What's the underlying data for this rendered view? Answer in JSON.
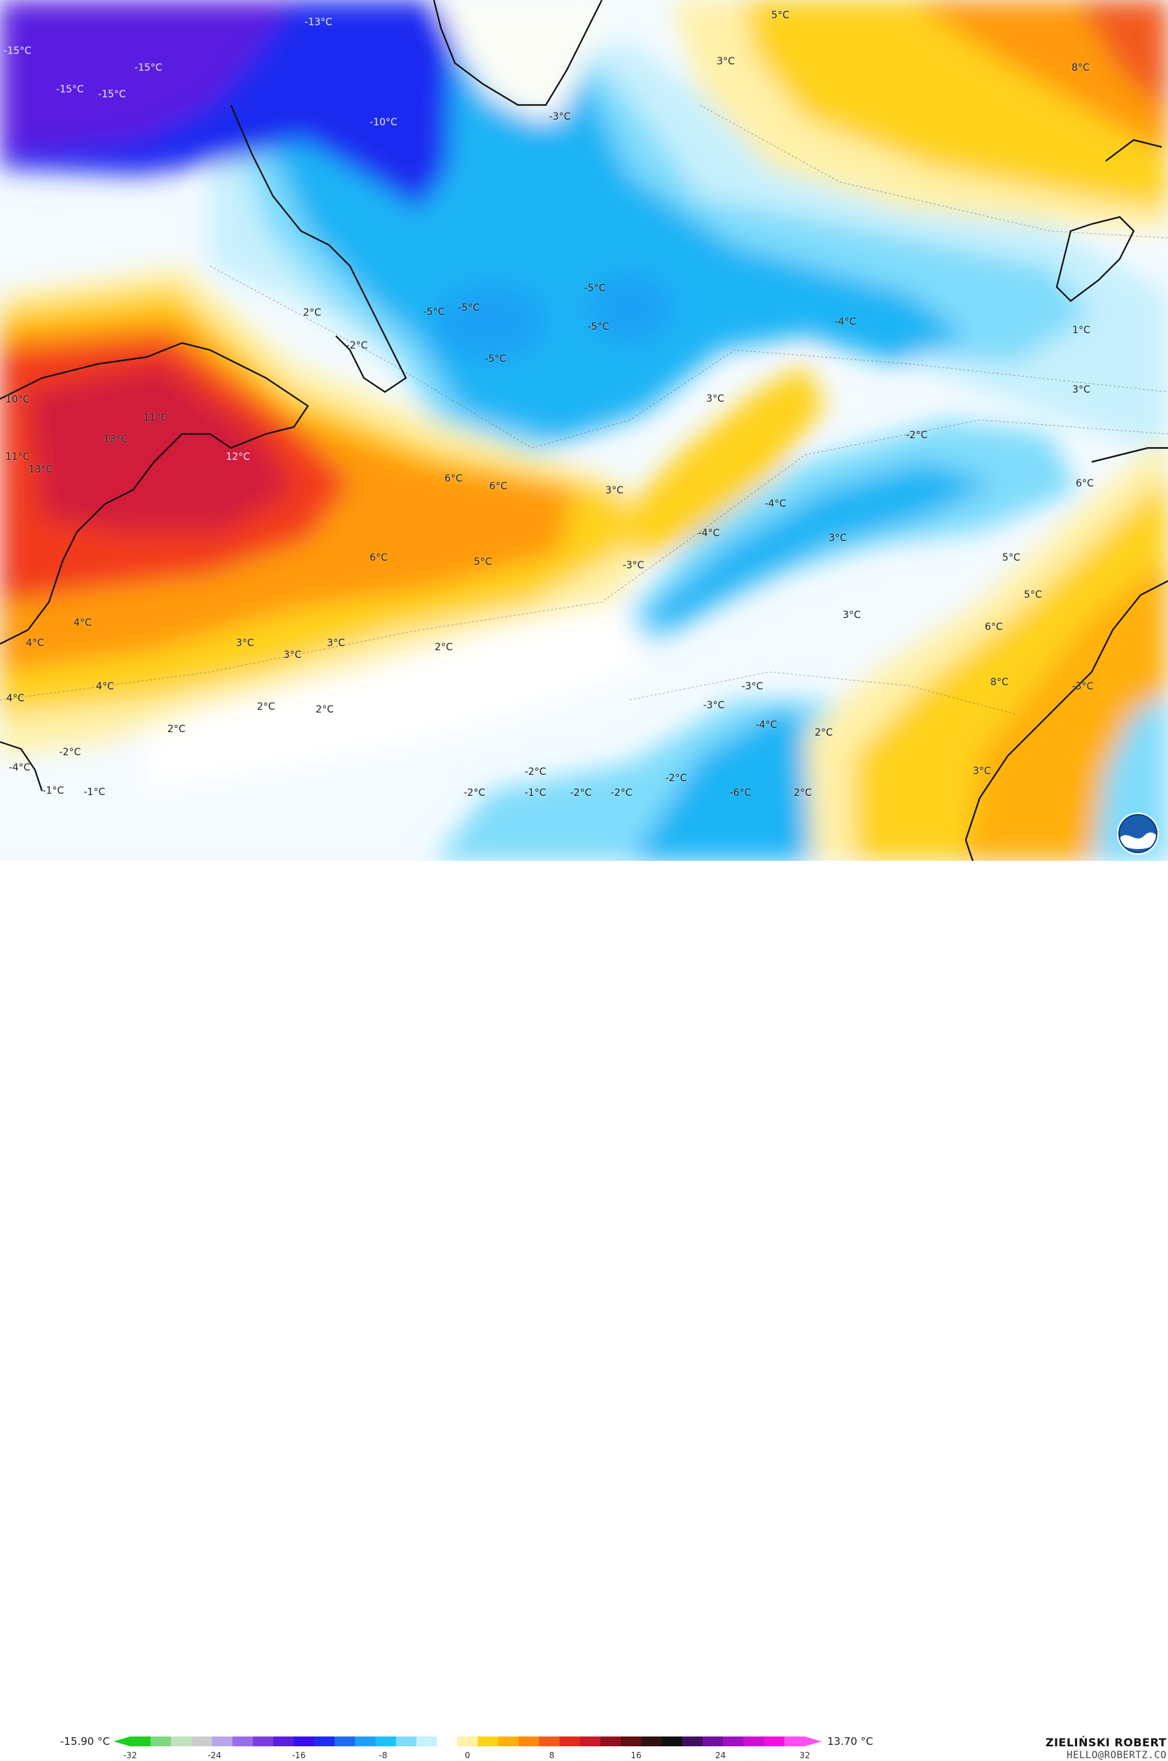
{
  "map": {
    "colors": {
      "very_cold": "#5a1ee0",
      "deep_cold": "#1f2cf0",
      "cold": "#1fb4f5",
      "cool": "#7fdcfb",
      "light": "#c7f0fd",
      "neutral": "#ffffff",
      "warm_light": "#fff1a8",
      "warm": "#ffd21a",
      "orange": "#ff9a10",
      "hot": "#f23a1a",
      "very_hot": "#d11d3a"
    },
    "labels": [
      {
        "text": "-13°C",
        "tone": "light"
      },
      {
        "text": "-15°C",
        "tone": "light"
      },
      {
        "text": "-15°C",
        "tone": "light"
      },
      {
        "text": "-15°C",
        "tone": "light"
      },
      {
        "text": "-15°C",
        "tone": "light"
      },
      {
        "text": "-10°C",
        "tone": "light"
      },
      {
        "text": "-3°C",
        "tone": "dark"
      },
      {
        "text": "5°C",
        "tone": "dark"
      },
      {
        "text": "3°C",
        "tone": "dark"
      },
      {
        "text": "8°C",
        "tone": "dark"
      },
      {
        "text": "-5°C",
        "tone": "dark"
      },
      {
        "text": "-5°C",
        "tone": "dark"
      },
      {
        "text": "-5°C",
        "tone": "dark"
      },
      {
        "text": "-5°C",
        "tone": "dark"
      },
      {
        "text": "-5°C",
        "tone": "dark"
      },
      {
        "text": "-4°C",
        "tone": "dark"
      },
      {
        "text": "1°C",
        "tone": "dark"
      },
      {
        "text": "2°C",
        "tone": "dark"
      },
      {
        "text": "-2°C",
        "tone": "dark"
      },
      {
        "text": "3°C",
        "tone": "dark"
      },
      {
        "text": "3°C",
        "tone": "dark"
      },
      {
        "text": "-2°C",
        "tone": "dark"
      },
      {
        "text": "10°C",
        "tone": "dark"
      },
      {
        "text": "11°C",
        "tone": "dark"
      },
      {
        "text": "13°C",
        "tone": "dark"
      },
      {
        "text": "11°C",
        "tone": "dark"
      },
      {
        "text": "13°C",
        "tone": "dark"
      },
      {
        "text": "12°C",
        "tone": "light"
      },
      {
        "text": "6°C",
        "tone": "dark"
      },
      {
        "text": "6°C",
        "tone": "dark"
      },
      {
        "text": "3°C",
        "tone": "dark"
      },
      {
        "text": "-4°C",
        "tone": "dark"
      },
      {
        "text": "-4°C",
        "tone": "dark"
      },
      {
        "text": "3°C",
        "tone": "dark"
      },
      {
        "text": "-3°C",
        "tone": "dark"
      },
      {
        "text": "6°C",
        "tone": "dark"
      },
      {
        "text": "5°C",
        "tone": "dark"
      },
      {
        "text": "5°C",
        "tone": "dark"
      },
      {
        "text": "5°C",
        "tone": "dark"
      },
      {
        "text": "4°C",
        "tone": "dark"
      },
      {
        "text": "4°C",
        "tone": "dark"
      },
      {
        "text": "3°C",
        "tone": "dark"
      },
      {
        "text": "3°C",
        "tone": "dark"
      },
      {
        "text": "3°C",
        "tone": "dark"
      },
      {
        "text": "2°C",
        "tone": "dark"
      },
      {
        "text": "3°C",
        "tone": "dark"
      },
      {
        "text": "6°C",
        "tone": "dark"
      },
      {
        "text": "6°C",
        "tone": "dark"
      },
      {
        "text": "4°C",
        "tone": "dark"
      },
      {
        "text": "4°C",
        "tone": "dark"
      },
      {
        "text": "2°C",
        "tone": "dark"
      },
      {
        "text": "2°C",
        "tone": "dark"
      },
      {
        "text": "2°C",
        "tone": "dark"
      },
      {
        "text": "-2°C",
        "tone": "dark"
      },
      {
        "text": "-4°C",
        "tone": "dark"
      },
      {
        "text": "-1°C",
        "tone": "dark"
      },
      {
        "text": "-1°C",
        "tone": "dark"
      },
      {
        "text": "-3°C",
        "tone": "dark"
      },
      {
        "text": "-3°C",
        "tone": "dark"
      },
      {
        "text": "-4°C",
        "tone": "dark"
      },
      {
        "text": "8°C",
        "tone": "dark"
      },
      {
        "text": "-3°C",
        "tone": "dark"
      },
      {
        "text": "2°C",
        "tone": "dark"
      },
      {
        "text": "-2°C",
        "tone": "dark"
      },
      {
        "text": "-2°C",
        "tone": "dark"
      },
      {
        "text": "-1°C",
        "tone": "dark"
      },
      {
        "text": "-2°C",
        "tone": "dark"
      },
      {
        "text": "-2°C",
        "tone": "dark"
      },
      {
        "text": "-2°C",
        "tone": "dark"
      },
      {
        "text": "-6°C",
        "tone": "dark"
      },
      {
        "text": "2°C",
        "tone": "dark"
      },
      {
        "text": "3°C",
        "tone": "dark"
      }
    ]
  },
  "colorbar": {
    "min_label": "-15.90 °C",
    "max_label": "13.70 °C",
    "ticks": [
      "-32",
      "-24",
      "-16",
      "-8",
      "0",
      "8",
      "16",
      "24",
      "32"
    ],
    "colors": [
      "#1fce1f",
      "#7fd87f",
      "#bfe3bf",
      "#cccccc",
      "#b9a6e8",
      "#9a6ee8",
      "#7a3ee0",
      "#5a1ee0",
      "#3a10e8",
      "#1f2cf0",
      "#1f6cf0",
      "#1fa0f5",
      "#1fc0f8",
      "#7fdcfb",
      "#c7f0fd",
      "#ffffff",
      "#fff1a8",
      "#ffd21a",
      "#ffb010",
      "#ff8a10",
      "#f25a1a",
      "#e02a1a",
      "#c81a2a",
      "#901020",
      "#601010",
      "#301010",
      "#101010",
      "#401060",
      "#7010a0",
      "#a010c0",
      "#d010d0",
      "#f010e0",
      "#ff50f0"
    ]
  },
  "branding": {
    "author": "ZIELIŃSKI ROBERT",
    "email": "HELLO@ROBERTZ.CO",
    "logo": "noaa-logo"
  }
}
